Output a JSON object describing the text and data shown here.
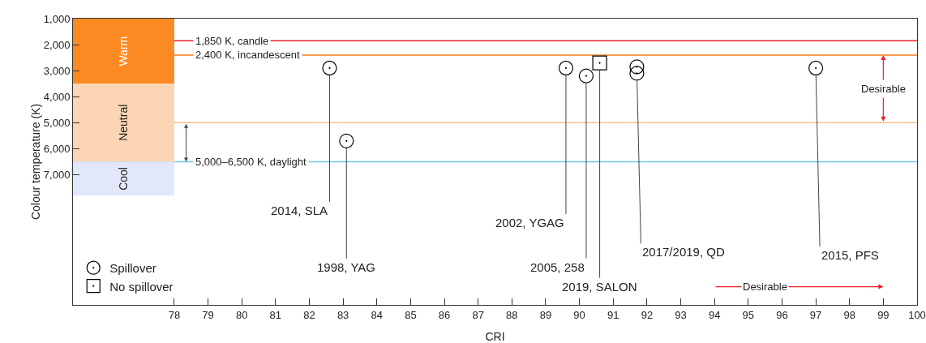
{
  "chart_data": {
    "type": "scatter",
    "xlabel": "CRI",
    "ylabel": "Colour temperature (K)",
    "xlim": [
      75,
      100
    ],
    "xticks": [
      78,
      79,
      80,
      81,
      82,
      83,
      84,
      85,
      86,
      87,
      88,
      89,
      90,
      91,
      92,
      93,
      94,
      95,
      96,
      97,
      98,
      99,
      100
    ],
    "ylim": [
      12000,
      1000
    ],
    "yticks": [
      {
        "value": 1000,
        "label": "1,000"
      },
      {
        "value": 2000,
        "label": "2,000"
      },
      {
        "value": 3000,
        "label": "3,000"
      },
      {
        "value": 4000,
        "label": "4,000"
      },
      {
        "value": 5000,
        "label": "5,000"
      },
      {
        "value": 6000,
        "label": "6,000"
      },
      {
        "value": 7000,
        "label": "7,000"
      }
    ],
    "grid": false,
    "legend": "bottom left",
    "series": [
      {
        "name": "Spillover",
        "marker": "circle",
        "color": "#000000",
        "x": [
          82.6,
          83.1,
          89.6,
          90.2,
          91.7,
          91.7,
          97.0
        ],
        "values": [
          2900,
          5700,
          2900,
          3200,
          2850,
          3100,
          2900
        ]
      },
      {
        "name": "No spillover",
        "marker": "square",
        "color": "#000000",
        "x": [
          90.6
        ],
        "values": [
          2700
        ]
      }
    ],
    "ref_lines": [
      {
        "axis": "y",
        "value": 1850,
        "label": "1,850 K, candle",
        "color": "#e8202a"
      },
      {
        "axis": "y",
        "value": 2400,
        "label": "2,400 K, incandescent",
        "color": "#f47b16"
      },
      {
        "axis": "y",
        "value": 5000,
        "label": null,
        "color": "#fbc08c"
      },
      {
        "axis": "y",
        "value": 6500,
        "label": "5,000–6,500 K, daylight",
        "color": "#72c6e0"
      }
    ],
    "bands": [
      {
        "axis": "y",
        "from": 1000,
        "to": 3500,
        "label": "Warm",
        "color": "#fb8a22"
      },
      {
        "axis": "y",
        "from": 3500,
        "to": 6500,
        "label": "Neutral",
        "color": "#fcd6b4"
      },
      {
        "axis": "y",
        "from": 6500,
        "to": 7800,
        "label": "Cool",
        "color": "#e2e7fa"
      }
    ],
    "annotations": [
      {
        "text": "2014, SLA",
        "x": 82.6,
        "y": 2900
      },
      {
        "text": "1998, YAG",
        "x": 83.1,
        "y": 5700
      },
      {
        "text": "2002, YGAG",
        "x": 89.6,
        "y": 2900
      },
      {
        "text": "2005, 258",
        "x": 90.2,
        "y": 3200
      },
      {
        "text": "2019, SALON",
        "x": 90.6,
        "y": 2700
      },
      {
        "text": "2017/2019, QD",
        "x": 91.7,
        "y": 3100
      },
      {
        "text": "2015, PFS",
        "x": 97.0,
        "y": 2900
      },
      "Desirable",
      "Desirable"
    ]
  }
}
